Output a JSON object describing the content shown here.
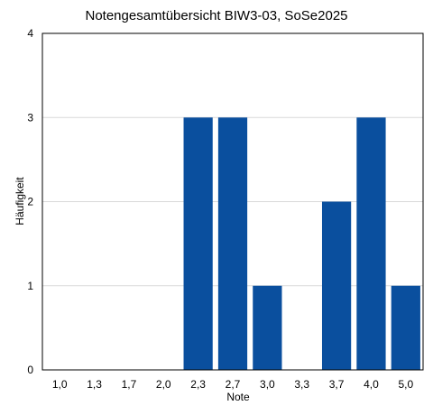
{
  "chart_data": {
    "type": "bar",
    "title": "Notengesamtübersicht BIW3-03, SoSe2025",
    "xlabel": "Note",
    "ylabel": "Häufigkeit",
    "categories": [
      "1,0",
      "1,3",
      "1,7",
      "2,0",
      "2,3",
      "2,7",
      "3,0",
      "3,3",
      "3,7",
      "4,0",
      "5,0"
    ],
    "values": [
      0,
      0,
      0,
      0,
      3,
      3,
      1,
      0,
      2,
      3,
      1
    ],
    "ylim": [
      0,
      4
    ],
    "yticks": [
      0,
      1,
      2,
      3,
      4
    ],
    "grid": true,
    "bar_color": "#0a4f9e",
    "grid_color": "#d9d9d9",
    "axis_color": "#000000"
  }
}
